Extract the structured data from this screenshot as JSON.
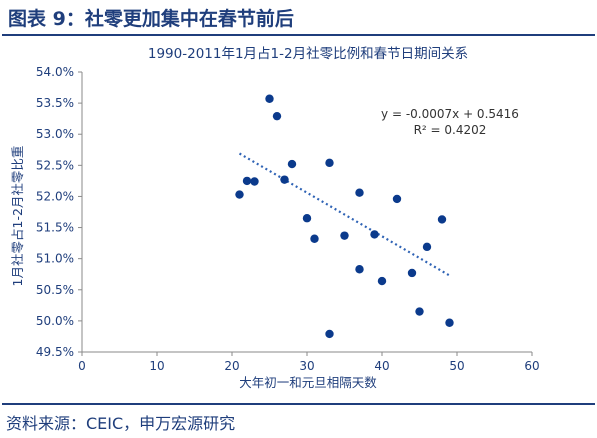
{
  "figure": {
    "title": "图表 9：社零更加集中在春节前后",
    "source": "资料来源：CEIC，申万宏源研究"
  },
  "colors": {
    "accent": "#1f3e7c",
    "marker": "#0b3a8c",
    "trendline": "#2f63b5"
  },
  "chart_data": {
    "type": "scatter",
    "title": "1990-2011年1月占1-2月社零比例和春节日期间关系",
    "xlabel": "大年初一和元旦相隔天数",
    "ylabel": "1月社零占1-2月社零比重",
    "xlim": [
      0,
      60
    ],
    "ylim": [
      0.495,
      0.54
    ],
    "xticks": [
      "0",
      "10",
      "20",
      "30",
      "40",
      "50",
      "60"
    ],
    "yticks": [
      "49.5%",
      "50.0%",
      "50.5%",
      "51.0%",
      "51.5%",
      "52.0%",
      "52.5%",
      "53.0%",
      "53.5%",
      "54.0%"
    ],
    "points": [
      {
        "x": 21,
        "y": 0.5203
      },
      {
        "x": 22,
        "y": 0.5225
      },
      {
        "x": 23,
        "y": 0.5224
      },
      {
        "x": 25,
        "y": 0.5357
      },
      {
        "x": 26,
        "y": 0.5329
      },
      {
        "x": 27,
        "y": 0.5227
      },
      {
        "x": 28,
        "y": 0.5252
      },
      {
        "x": 30,
        "y": 0.5165
      },
      {
        "x": 31,
        "y": 0.5132
      },
      {
        "x": 33,
        "y": 0.5254
      },
      {
        "x": 33,
        "y": 0.4979
      },
      {
        "x": 35,
        "y": 0.5137
      },
      {
        "x": 37,
        "y": 0.5206
      },
      {
        "x": 37,
        "y": 0.5083
      },
      {
        "x": 39,
        "y": 0.5139
      },
      {
        "x": 40,
        "y": 0.5064
      },
      {
        "x": 42,
        "y": 0.5196
      },
      {
        "x": 44,
        "y": 0.5077
      },
      {
        "x": 45,
        "y": 0.5015
      },
      {
        "x": 46,
        "y": 0.5119
      },
      {
        "x": 48,
        "y": 0.5163
      },
      {
        "x": 49,
        "y": 0.4997
      }
    ],
    "trendline": {
      "type": "linear",
      "slope": -0.0007,
      "intercept": 0.5416,
      "x_range": [
        21,
        49
      ],
      "equation": "y = -0.0007x + 0.5416",
      "r2": "R² = 0.4202"
    },
    "grid": false,
    "legend": "none"
  }
}
